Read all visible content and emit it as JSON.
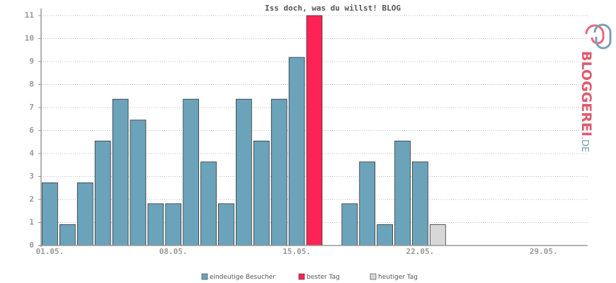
{
  "chart_data": {
    "type": "bar",
    "title": "Iss doch, was du willst! BLOG",
    "categories": [
      "01.05.",
      null,
      null,
      null,
      null,
      null,
      null,
      "08.05.",
      null,
      null,
      null,
      null,
      null,
      null,
      "15.05.",
      null,
      null,
      null,
      null,
      null,
      null,
      "22.05.",
      null,
      null,
      null,
      null,
      null,
      null,
      "29.05.",
      null,
      null
    ],
    "series": [
      {
        "name": "eindeutige Besucher",
        "color": "#6ba3bb",
        "values": [
          3,
          1,
          3,
          5,
          7,
          6,
          2,
          2,
          7,
          4,
          2,
          7,
          5,
          7,
          9,
          null,
          0,
          2,
          4,
          1,
          5,
          4,
          null,
          null,
          null,
          null,
          null,
          null,
          null,
          null,
          null
        ]
      },
      {
        "name": "bester Tag",
        "color": "#ff2255",
        "values": [
          null,
          null,
          null,
          null,
          null,
          null,
          null,
          null,
          null,
          null,
          null,
          null,
          null,
          null,
          null,
          11,
          null,
          null,
          null,
          null,
          null,
          null,
          null,
          null,
          null,
          null,
          null,
          null,
          null,
          null,
          null
        ]
      },
      {
        "name": "heutiger Tag",
        "color": "#d8d8d8",
        "values": [
          null,
          null,
          null,
          null,
          null,
          null,
          null,
          null,
          null,
          null,
          null,
          null,
          null,
          null,
          null,
          null,
          null,
          null,
          null,
          null,
          null,
          null,
          1,
          null,
          null,
          null,
          null,
          null,
          null,
          null,
          null
        ]
      }
    ],
    "ylim": [
      0,
      11
    ],
    "yticks": [
      0,
      {
        "value": 1.1,
        "label": "1"
      },
      {
        "value": 2.2,
        "label": "2"
      },
      {
        "value": 3.3,
        "label": "3"
      },
      {
        "value": 4.4,
        "label": "4"
      },
      {
        "value": 5.5,
        "label": "6"
      },
      {
        "value": 6.6,
        "label": "7"
      },
      {
        "value": 7.7,
        "label": "8"
      },
      {
        "value": 8.8,
        "label": "9"
      },
      {
        "value": 9.9,
        "label": "10"
      },
      11
    ],
    "grid": true
  },
  "logo": {
    "text": "BLOGGEREI",
    "suffix": ".DE"
  }
}
